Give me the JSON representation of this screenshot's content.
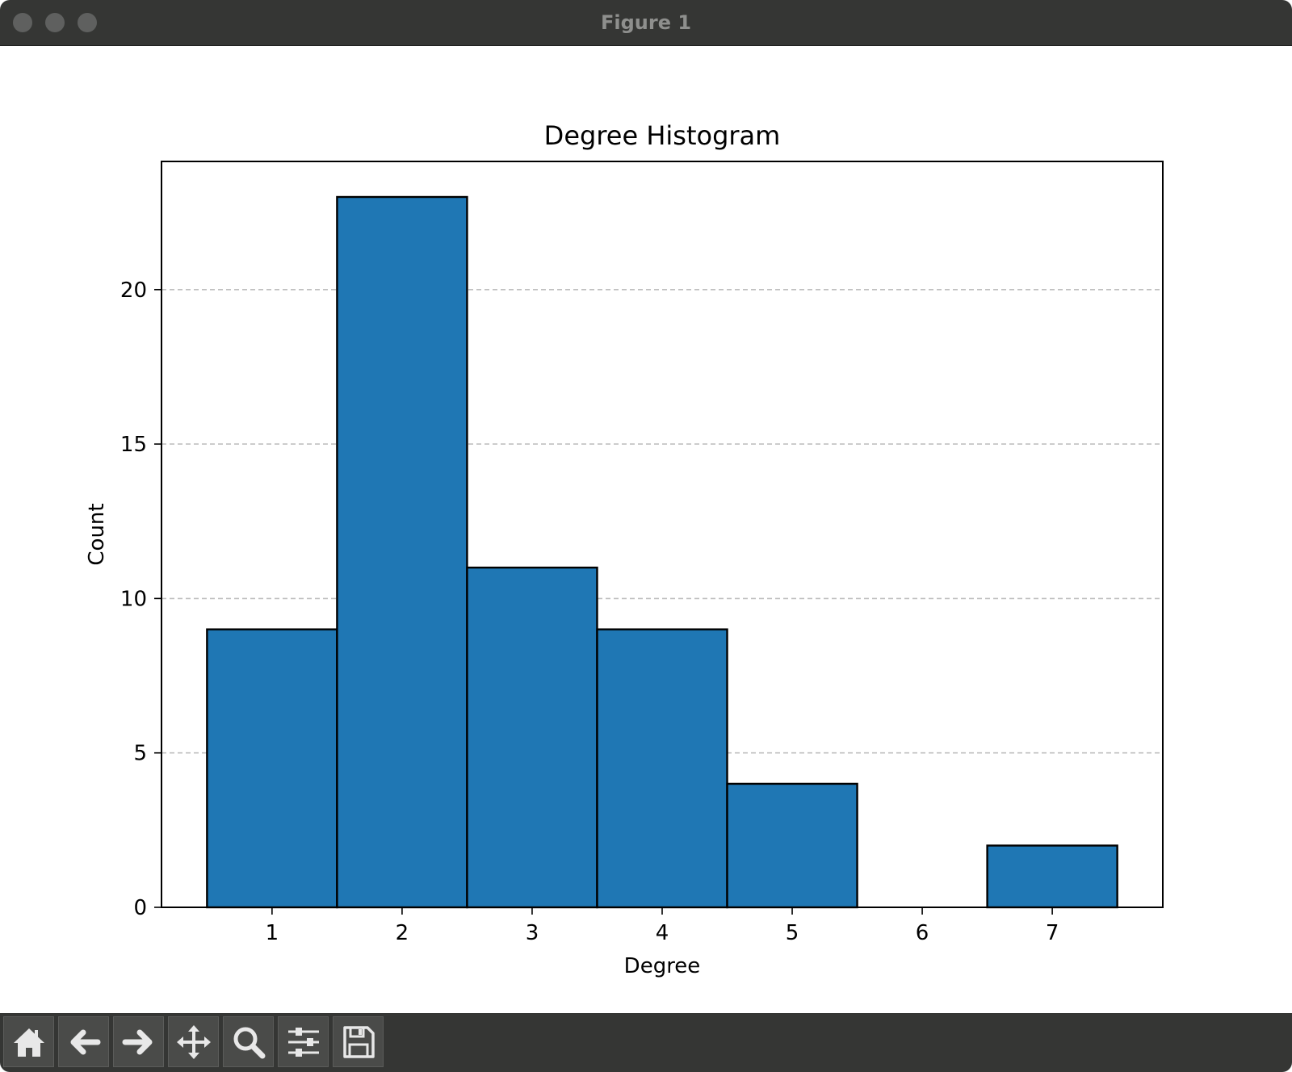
{
  "window": {
    "title": "Figure 1"
  },
  "toolbar": {
    "buttons": [
      {
        "id": "home",
        "icon": "home-icon"
      },
      {
        "id": "back",
        "icon": "arrow-left-icon"
      },
      {
        "id": "forward",
        "icon": "arrow-right-icon"
      },
      {
        "id": "pan",
        "icon": "move-icon"
      },
      {
        "id": "zoom",
        "icon": "magnifier-icon"
      },
      {
        "id": "configure",
        "icon": "sliders-icon"
      },
      {
        "id": "save",
        "icon": "floppy-disk-icon"
      }
    ]
  },
  "colors": {
    "bar": "#1f77b4",
    "edge": "#000000",
    "grid": "#c0c0c0",
    "chrome": "#353634"
  },
  "chart_data": {
    "type": "bar",
    "title": "Degree Histogram",
    "xlabel": "Degree",
    "ylabel": "Count",
    "categories": [
      "1",
      "2",
      "3",
      "4",
      "5",
      "6",
      "7"
    ],
    "values": [
      9,
      23,
      11,
      9,
      4,
      0,
      2
    ],
    "xlim": [
      0.15,
      7.85
    ],
    "ylim": [
      0,
      24.15
    ],
    "yticks": [
      0,
      5,
      10,
      15,
      20
    ],
    "grid": "y-dashed",
    "legend": "none"
  }
}
